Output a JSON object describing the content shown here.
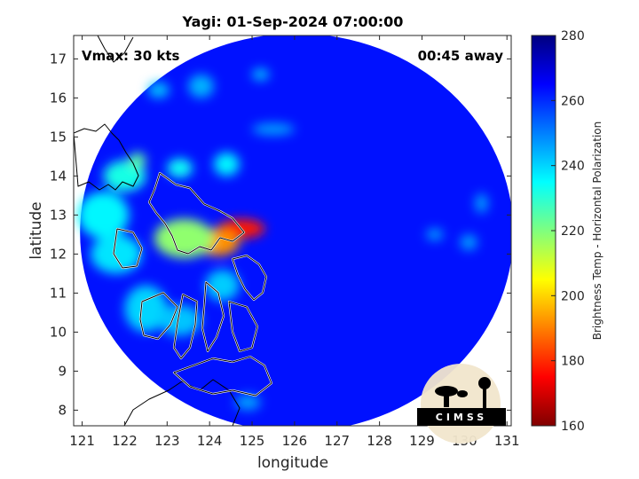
{
  "chart_data": {
    "type": "heatmap",
    "title": "Yagi: 01-Sep-2024 07:00:00",
    "xlabel": "longitude",
    "ylabel": "latitude",
    "xlim": [
      120.8,
      131.1
    ],
    "ylim": [
      7.6,
      17.6
    ],
    "xticks": [
      121,
      122,
      123,
      124,
      125,
      126,
      127,
      128,
      129,
      130,
      131
    ],
    "yticks": [
      8,
      9,
      10,
      11,
      12,
      13,
      14,
      15,
      16,
      17
    ],
    "annotations": {
      "left": "Vmax: 30 kts",
      "right": "00:45 away"
    },
    "colorbar": {
      "label": "Brightness Temp - Horizontal Polarization",
      "range": [
        160,
        280
      ],
      "ticks": [
        160,
        180,
        200,
        220,
        240,
        260,
        280
      ],
      "colormap": "jet"
    },
    "swath_center": [
      126.05,
      12.55
    ],
    "swath_radius_deg": 5.1,
    "background_tb": 263,
    "features": [
      {
        "lon": 124.75,
        "lat": 12.65,
        "tb": 178,
        "rx": 0.55,
        "ry": 0.25
      },
      {
        "lon": 124.2,
        "lat": 12.3,
        "tb": 192,
        "rx": 0.5,
        "ry": 0.35
      },
      {
        "lon": 123.4,
        "lat": 12.4,
        "tb": 218,
        "rx": 0.7,
        "ry": 0.5
      },
      {
        "lon": 122.0,
        "lat": 14.0,
        "tb": 232,
        "rx": 0.5,
        "ry": 0.4
      },
      {
        "lon": 122.3,
        "lat": 14.4,
        "tb": 224,
        "rx": 0.2,
        "ry": 0.2
      },
      {
        "lon": 121.5,
        "lat": 13.0,
        "tb": 236,
        "rx": 0.6,
        "ry": 0.6
      },
      {
        "lon": 121.8,
        "lat": 12.0,
        "tb": 238,
        "rx": 0.6,
        "ry": 0.5
      },
      {
        "lon": 123.3,
        "lat": 14.2,
        "tb": 234,
        "rx": 0.3,
        "ry": 0.25
      },
      {
        "lon": 124.4,
        "lat": 14.3,
        "tb": 236,
        "rx": 0.3,
        "ry": 0.3
      },
      {
        "lon": 122.5,
        "lat": 10.6,
        "tb": 240,
        "rx": 0.5,
        "ry": 0.6
      },
      {
        "lon": 123.3,
        "lat": 10.3,
        "tb": 242,
        "rx": 0.5,
        "ry": 0.4
      },
      {
        "lon": 124.3,
        "lat": 11.2,
        "tb": 241,
        "rx": 0.4,
        "ry": 0.4
      },
      {
        "lon": 122.8,
        "lat": 16.2,
        "tb": 242,
        "rx": 0.25,
        "ry": 0.2
      },
      {
        "lon": 123.8,
        "lat": 16.3,
        "tb": 244,
        "rx": 0.3,
        "ry": 0.3
      },
      {
        "lon": 125.2,
        "lat": 16.6,
        "tb": 242,
        "rx": 0.2,
        "ry": 0.15
      },
      {
        "lon": 125.5,
        "lat": 15.2,
        "tb": 246,
        "rx": 0.5,
        "ry": 0.15
      },
      {
        "lon": 129.3,
        "lat": 12.5,
        "tb": 246,
        "rx": 0.2,
        "ry": 0.15
      },
      {
        "lon": 130.1,
        "lat": 12.3,
        "tb": 246,
        "rx": 0.2,
        "ry": 0.2
      },
      {
        "lon": 130.4,
        "lat": 13.3,
        "tb": 246,
        "rx": 0.15,
        "ry": 0.25
      },
      {
        "lon": 124.9,
        "lat": 8.2,
        "tb": 246,
        "rx": 0.3,
        "ry": 0.2
      }
    ]
  },
  "logo": {
    "text": "CIMSS"
  }
}
